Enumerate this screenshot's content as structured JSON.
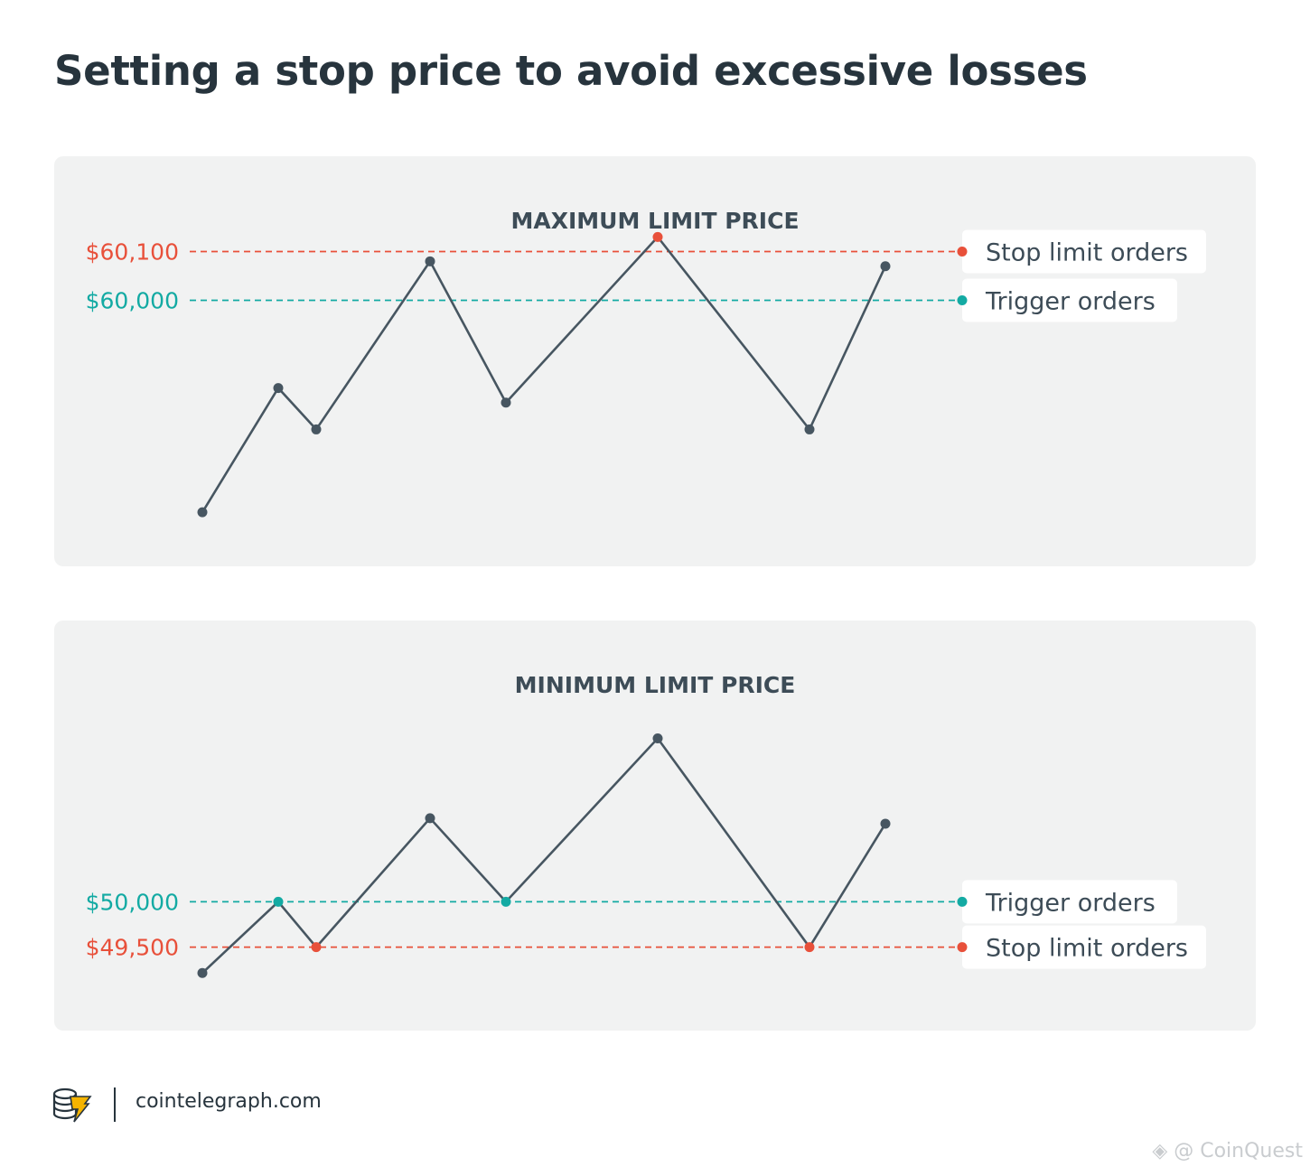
{
  "title": "Setting a stop price to avoid excessive losses",
  "colors": {
    "stop": "#e8503a",
    "trigger": "#13aaa3",
    "line": "#475661",
    "panel_bg": "#f1f2f2",
    "tag_bg": "#ffffff",
    "text": "#27343d",
    "accent_logo": "#f5b400"
  },
  "chart_data": [
    {
      "type": "line",
      "title": "MAXIMUM LIMIT PRICE",
      "x": [
        0,
        1,
        1.5,
        3,
        4,
        6,
        8,
        9
      ],
      "values": [
        59565,
        59820,
        59735,
        60080,
        59790,
        60130,
        59735,
        60070
      ],
      "markers": [
        "line",
        "line",
        "line",
        "line",
        "line",
        "stop",
        "line",
        "line"
      ],
      "reference_lines": [
        {
          "kind": "stop",
          "value": 60100,
          "label": "$60,100",
          "tag": "Stop limit orders"
        },
        {
          "kind": "trigger",
          "value": 60000,
          "label": "$60,000",
          "tag": "Trigger orders"
        }
      ],
      "ylim": [
        59480,
        60240
      ]
    },
    {
      "type": "line",
      "title": "MINIMUM LIMIT PRICE",
      "x": [
        0,
        1,
        1.5,
        3,
        4,
        6,
        8,
        9
      ],
      "values": [
        49215,
        50000,
        49500,
        50920,
        50000,
        51800,
        49500,
        50860
      ],
      "markers": [
        "line",
        "trigger",
        "stop",
        "line",
        "trigger",
        "line",
        "stop",
        "line"
      ],
      "reference_lines": [
        {
          "kind": "trigger",
          "value": 50000,
          "label": "$50,000",
          "tag": "Trigger orders"
        },
        {
          "kind": "stop",
          "value": 49500,
          "label": "$49,500",
          "tag": "Stop limit orders"
        }
      ],
      "ylim": [
        48720,
        52800
      ]
    }
  ],
  "footer": {
    "site": "cointelegraph.com",
    "logo_icon": "cointelegraph-coin-stack-icon"
  },
  "watermark": {
    "icon": "binance-diamond-icon",
    "text": "@ CoinQuest"
  }
}
